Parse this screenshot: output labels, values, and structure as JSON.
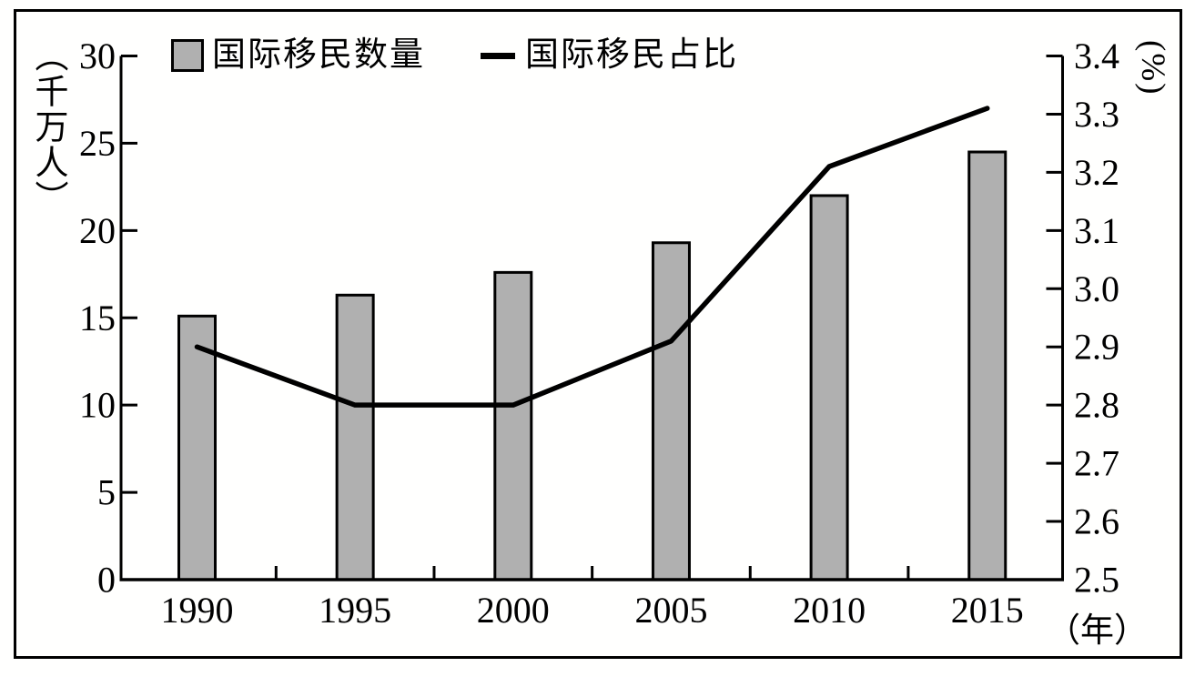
{
  "figure": {
    "background": "#ffffff",
    "border_color": "#000000"
  },
  "legend": {
    "items": [
      {
        "label": "国际移民数量",
        "marker": "bar-swatch",
        "swatch_color": "#b0b0b0",
        "swatch_border": "#000000"
      },
      {
        "label": "国际移民占比",
        "marker": "line-swatch",
        "swatch_color": "#000000"
      }
    ]
  },
  "axes": {
    "left": {
      "unit_label": "（千万人）",
      "tick_labels": [
        "0",
        "5",
        "10",
        "15",
        "20",
        "25",
        "30"
      ]
    },
    "right": {
      "unit_label": "(%)",
      "tick_labels": [
        "2.5",
        "2.6",
        "2.7",
        "2.8",
        "2.9",
        "3.0",
        "3.1",
        "3.2",
        "3.3",
        "3.4"
      ]
    },
    "x": {
      "unit_label": "（年）",
      "tick_labels": [
        "1990",
        "1995",
        "2000",
        "2005",
        "2010",
        "2015"
      ]
    }
  },
  "chart_data": {
    "type": "bar+line",
    "categories": [
      "1990",
      "1995",
      "2000",
      "2005",
      "2010",
      "2015"
    ],
    "series": [
      {
        "name": "国际移民数量",
        "type": "bar",
        "axis": "left",
        "unit": "千万人",
        "values": [
          15.1,
          16.3,
          17.6,
          19.3,
          22.0,
          24.5
        ],
        "fill_color": "#b0b0b0",
        "stroke_color": "#000000"
      },
      {
        "name": "国际移民占比",
        "type": "line",
        "axis": "right",
        "unit": "%",
        "values": [
          2.9,
          2.8,
          2.8,
          2.91,
          3.21,
          3.31
        ],
        "color": "#000000"
      }
    ],
    "left_ylim": [
      0,
      30
    ],
    "left_ticks": [
      0,
      5,
      10,
      15,
      20,
      25,
      30
    ],
    "right_ylim": [
      2.5,
      3.4
    ],
    "right_ticks": [
      2.5,
      2.6,
      2.7,
      2.8,
      2.9,
      3.0,
      3.1,
      3.2,
      3.3,
      3.4
    ],
    "xlabel": "（年）",
    "left_axis_unit": "（千万人）",
    "right_axis_unit": "(%)",
    "grid": false,
    "legend_position": "top"
  }
}
